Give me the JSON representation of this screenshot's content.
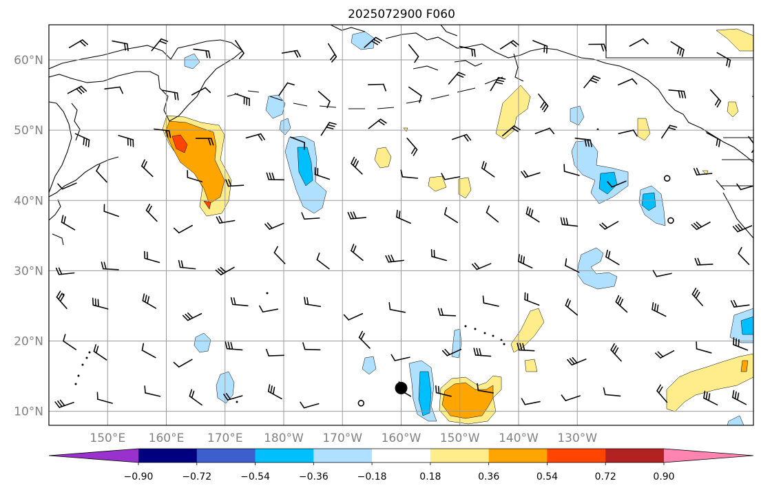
{
  "title": "2025072900 F060",
  "map": {
    "lon_range": [
      140,
      260
    ],
    "lat_range": [
      8,
      65
    ],
    "lat_labels": [
      "10°N",
      "20°N",
      "30°N",
      "40°N",
      "50°N",
      "60°N"
    ],
    "lat_values": [
      10,
      20,
      30,
      40,
      50,
      60
    ],
    "lon_labels": [
      "150°E",
      "160°E",
      "170°E",
      "180°W",
      "170°W",
      "160°W",
      "150°W",
      "140°W",
      "130°W"
    ],
    "lon_values": [
      150,
      160,
      170,
      180,
      190,
      200,
      210,
      220,
      230
    ],
    "grid": true,
    "marker": {
      "lon": 200,
      "lat": 13.3,
      "color": "#000000"
    }
  },
  "colorbar": {
    "colors": [
      "#9932cc",
      "#000080",
      "#3c5fcd",
      "#00bfff",
      "#b0e0ff",
      "#ffffff",
      "#ffec8b",
      "#ffa500",
      "#ff4500",
      "#b22222",
      "#ff85b0"
    ],
    "tick_labels": [
      "−0.90",
      "−0.72",
      "−0.54",
      "−0.36",
      "−0.18",
      "0.18",
      "0.36",
      "0.54",
      "0.72",
      "0.90"
    ],
    "extend": "both"
  },
  "contour_colors": {
    "neg_light": "#b0e0ff",
    "neg_mid": "#00bfff",
    "pos_light": "#ffec8b",
    "pos_mid": "#ffa500",
    "pos_strong": "#ff4500"
  }
}
